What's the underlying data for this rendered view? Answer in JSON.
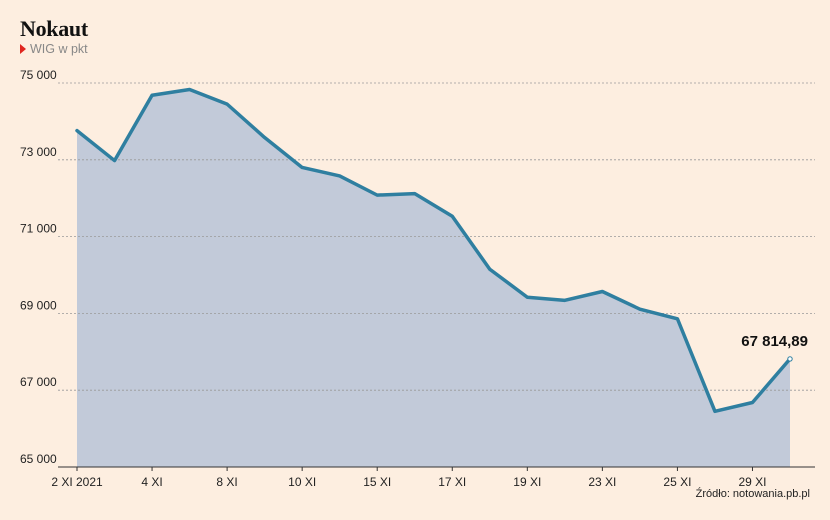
{
  "title": "Nokaut",
  "subtitle": "WIG w pkt",
  "source": "Źródło: notowania.pb.pl",
  "colors": {
    "background": "#fdeee0",
    "line": "#2f7fa0",
    "area": "#c2cad9",
    "marker": "#e0261f",
    "grid": "#999999"
  },
  "chart_data": {
    "type": "area",
    "title": "Nokaut",
    "subtitle": "WIG w pkt",
    "xlabel": "",
    "ylabel": "",
    "grid": true,
    "ylim": [
      65000,
      75000
    ],
    "yticks": [
      65000,
      67000,
      69000,
      71000,
      73000,
      75000
    ],
    "ytick_labels": [
      "65 000",
      "67 000",
      "69 000",
      "71 000",
      "73 000",
      "75 000"
    ],
    "x": [
      "2 XI 2021",
      "3 XI",
      "4 XI",
      "5 XI",
      "8 XI",
      "9 XI",
      "10 XI",
      "12 XI",
      "15 XI",
      "16 XI",
      "17 XI",
      "18 XI",
      "19 XI",
      "22 XI",
      "23 XI",
      "24 XI",
      "25 XI",
      "26 XI",
      "29 XI",
      "30 XI"
    ],
    "xtick_labels": [
      {
        "index": 0,
        "label": "2 XI 2021"
      },
      {
        "index": 2,
        "label": "4 XI"
      },
      {
        "index": 4,
        "label": "8 XI"
      },
      {
        "index": 6,
        "label": "10 XI"
      },
      {
        "index": 8,
        "label": "15 XI"
      },
      {
        "index": 10,
        "label": "17 XI"
      },
      {
        "index": 12,
        "label": "19 XI"
      },
      {
        "index": 14,
        "label": "23 XI"
      },
      {
        "index": 16,
        "label": "25 XI"
      },
      {
        "index": 18,
        "label": "29 XI"
      }
    ],
    "series": [
      {
        "values": [
          73760,
          72980,
          74680,
          74830,
          74450,
          73580,
          72800,
          72580,
          72080,
          72120,
          71530,
          70150,
          69420,
          69340,
          69570,
          69110,
          68860,
          66450,
          66680,
          67815
        ]
      }
    ],
    "annotations": [
      {
        "index": 19,
        "text": "67 814,89"
      }
    ]
  }
}
